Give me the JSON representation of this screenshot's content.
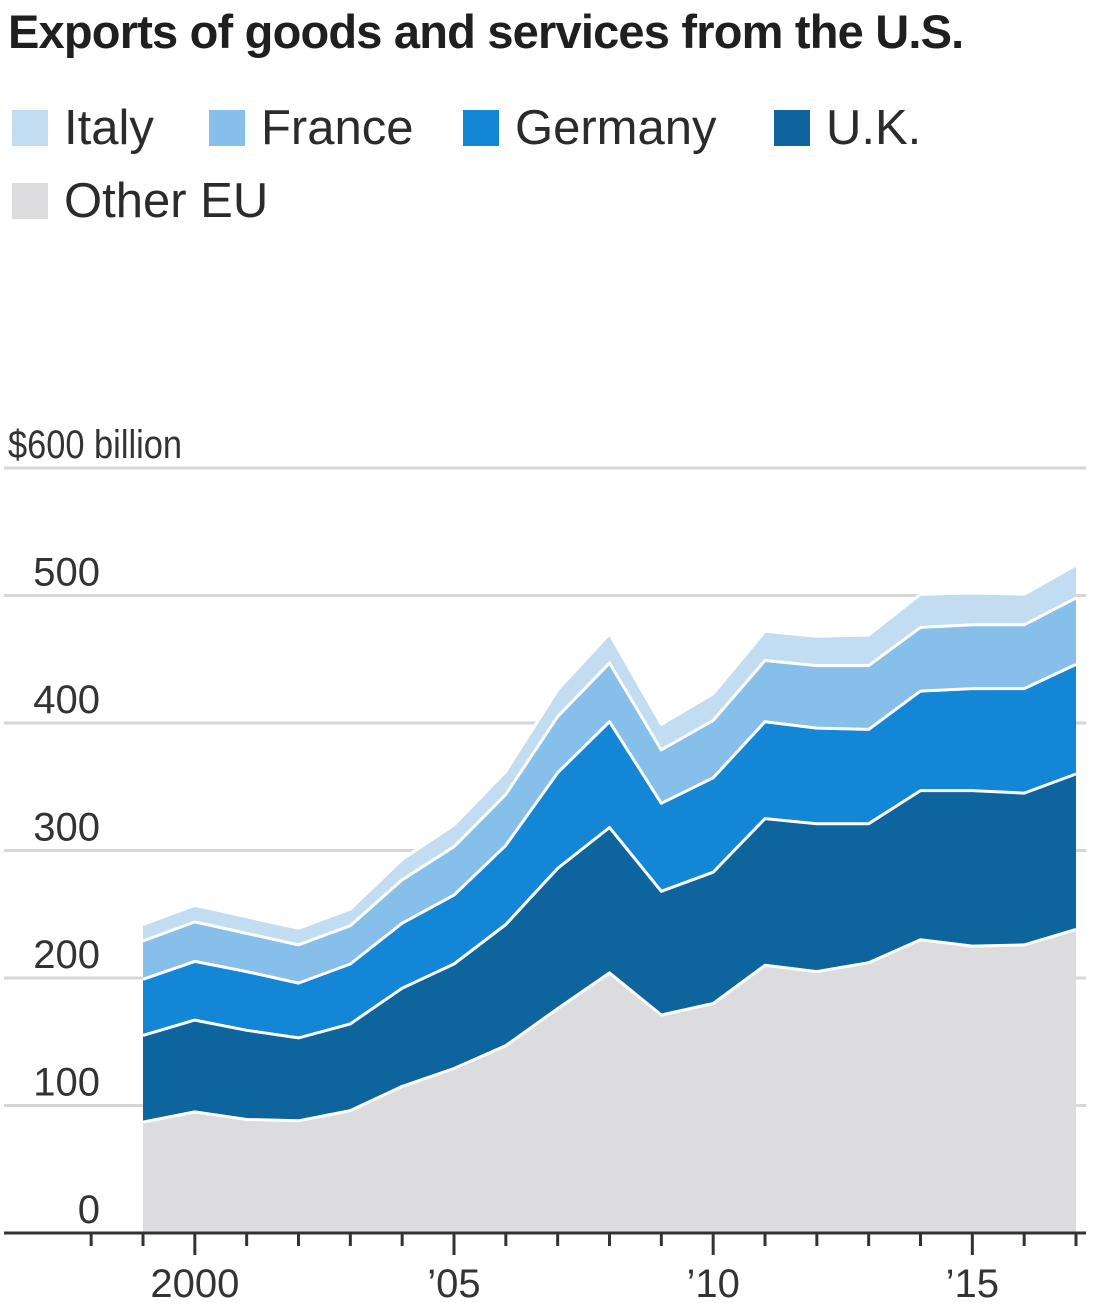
{
  "title": "Exports of goods and services from the U.S.",
  "legend": [
    {
      "label": "Italy",
      "color": "#c2dcf1"
    },
    {
      "label": "France",
      "color": "#86bfe9"
    },
    {
      "label": "Germany",
      "color": "#1386d6"
    },
    {
      "label": "U.K.",
      "color": "#0e649c"
    },
    {
      "label": "Other EU",
      "color": "#dcdcde"
    }
  ],
  "chart_data": {
    "type": "area",
    "stacked": true,
    "title": "Exports of goods and services from the U.S.",
    "ylabel": "$600 billion",
    "ylim": [
      0,
      600
    ],
    "yticks": [
      {
        "value": 0,
        "label": "0"
      },
      {
        "value": 100,
        "label": "100"
      },
      {
        "value": 200,
        "label": "200"
      },
      {
        "value": 300,
        "label": "300"
      },
      {
        "value": 400,
        "label": "400"
      },
      {
        "value": 500,
        "label": "500"
      },
      {
        "value": 600,
        "label": "$600 billion"
      }
    ],
    "xlim": [
      1998,
      2017.4
    ],
    "xticks": [
      {
        "value": 2000,
        "label": "2000"
      },
      {
        "value": 2005,
        "label": "’05"
      },
      {
        "value": 2010,
        "label": "’10"
      },
      {
        "value": 2015,
        "label": "’15"
      }
    ],
    "x": [
      1999,
      2000,
      2001,
      2002,
      2003,
      2004,
      2005,
      2006,
      2007,
      2008,
      2009,
      2010,
      2011,
      2012,
      2013,
      2014,
      2015,
      2016,
      2017
    ],
    "grid": true,
    "series": [
      {
        "name": "Other EU",
        "color": "#dcdcde",
        "values": [
          87,
          95,
          89,
          88,
          96,
          115,
          129,
          147,
          176,
          204,
          171,
          180,
          210,
          205,
          212,
          230,
          225,
          226,
          238
        ]
      },
      {
        "name": "U.K.",
        "color": "#0e649c",
        "values": [
          68,
          72,
          70,
          65,
          68,
          77,
          82,
          95,
          110,
          114,
          97,
          103,
          115,
          116,
          109,
          117,
          122,
          119,
          122
        ]
      },
      {
        "name": "Germany",
        "color": "#1386d6",
        "values": [
          44,
          46,
          46,
          43,
          47,
          51,
          54,
          62,
          75,
          83,
          69,
          74,
          76,
          75,
          74,
          78,
          80,
          82,
          86
        ]
      },
      {
        "name": "France",
        "color": "#86bfe9",
        "values": [
          30,
          31,
          30,
          30,
          30,
          34,
          38,
          40,
          44,
          46,
          42,
          45,
          48,
          49,
          50,
          50,
          50,
          50,
          52
        ]
      },
      {
        "name": "Italy",
        "color": "#c2dcf1",
        "values": [
          13,
          13,
          13,
          13,
          13,
          16,
          17,
          18,
          21,
          23,
          20,
          21,
          23,
          23,
          24,
          26,
          25,
          24,
          26
        ]
      }
    ]
  }
}
